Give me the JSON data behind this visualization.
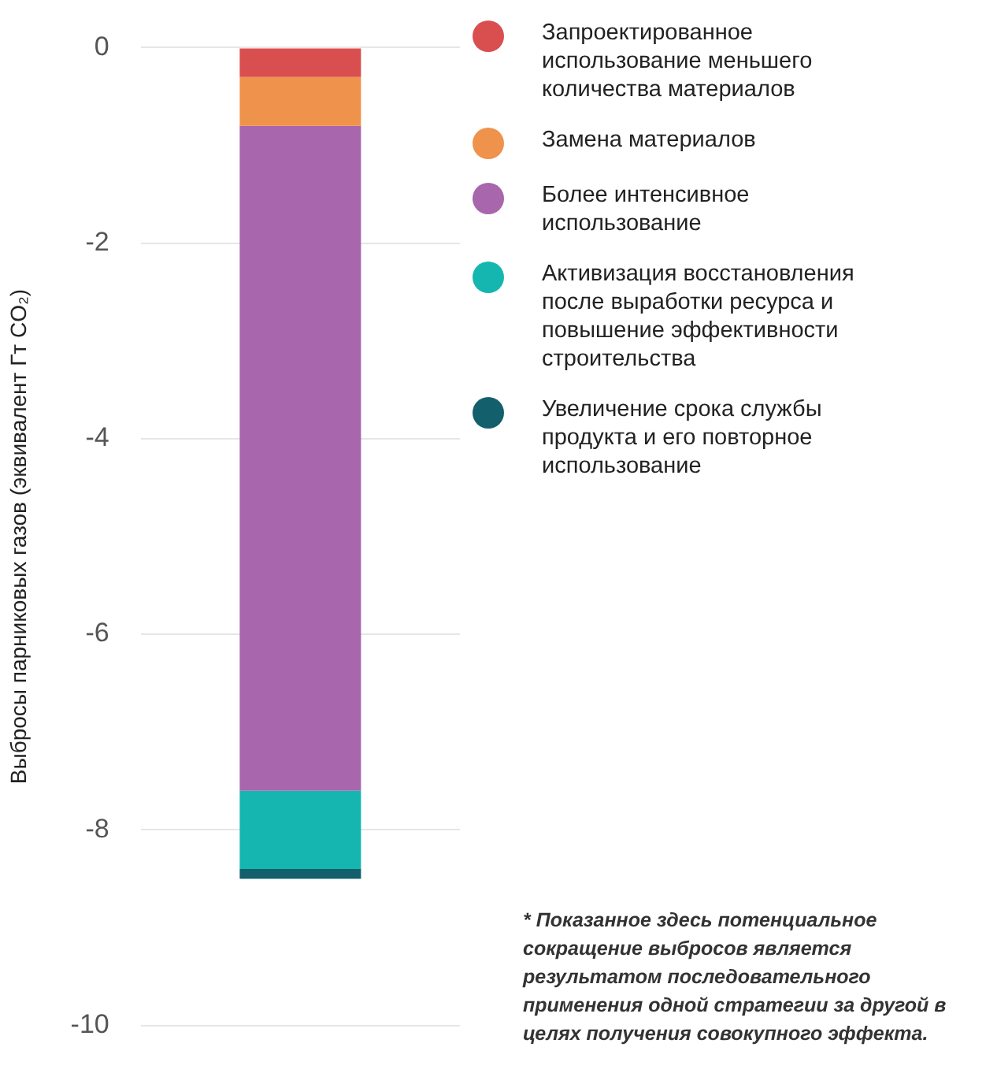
{
  "chart_data": {
    "type": "bar",
    "stacked": true,
    "ylabel": "Выбросы парниковых газов (эквивалент Гт CO₂)",
    "categories": [
      null
    ],
    "series": [
      {
        "name": "Запроектированное использование меньшего количества материалов",
        "color": "#d94f50",
        "values": [
          -0.3
        ]
      },
      {
        "name": "Замена материалов",
        "color": "#ef924c",
        "values": [
          -0.5
        ]
      },
      {
        "name": "Более интенсивное использование",
        "color": "#a866ac",
        "values": [
          -6.8
        ]
      },
      {
        "name": "Активизация восстановления после выработки ресурса и повышение эффективности строительства",
        "color": "#16b6b0",
        "values": [
          -0.8
        ]
      },
      {
        "name": "Увеличение срока службы продукта и его повторное использование",
        "color": "#135f6c",
        "values": [
          -0.1
        ]
      }
    ],
    "ylim": [
      -10,
      0
    ],
    "yticks": [
      -10,
      -8,
      -6,
      -4,
      -2,
      0
    ],
    "grid": "y",
    "legend": "right",
    "annotations": [
      "* Показанное здесь потенциальное сокращение выбросов является результатом последовательного применения одной стратегии за другой в целях получения совокупного эффекта."
    ]
  }
}
